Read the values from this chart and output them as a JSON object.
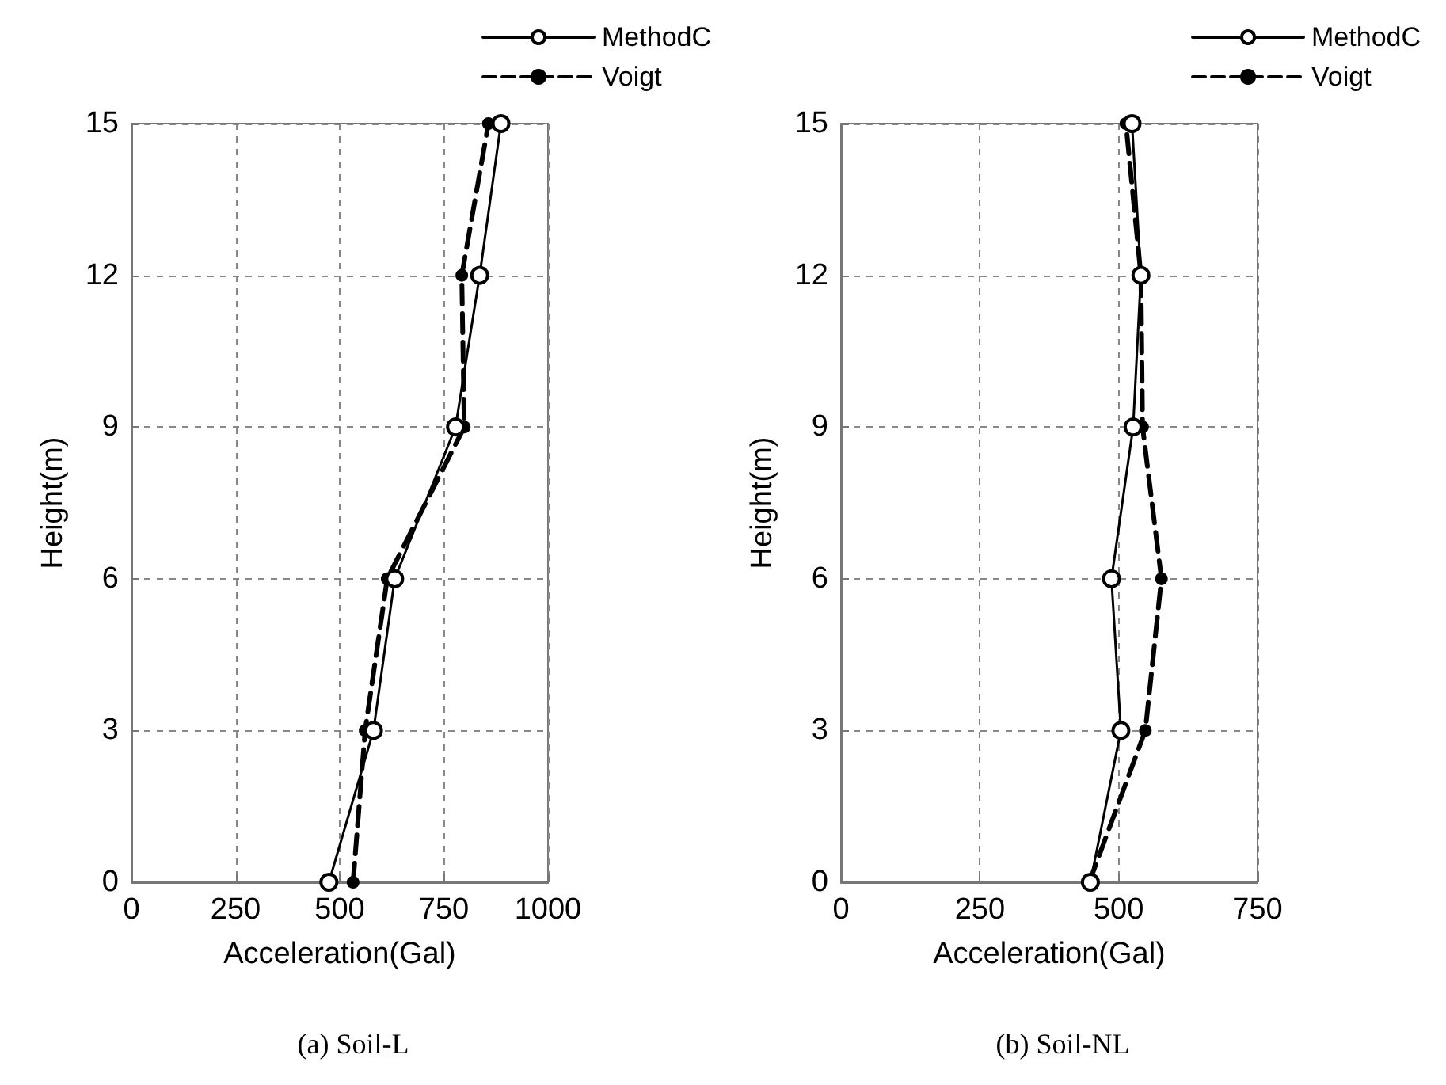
{
  "chart_data": [
    {
      "type": "line",
      "title": "(a) Soil-L",
      "xlabel": "Acceleration(Gal)",
      "ylabel": "Height(m)",
      "xlim": [
        0,
        1000
      ],
      "xticks": [
        0,
        250,
        500,
        750,
        1000
      ],
      "ylim": [
        0,
        15
      ],
      "yticks": [
        0,
        3,
        6,
        9,
        12,
        15
      ],
      "grid": true,
      "legend": "top right",
      "marker": "circle",
      "series": [
        {
          "name": "MethodC",
          "color": "#000000",
          "line_style": "solid",
          "x": [
            474,
            581,
            632,
            778,
            836,
            887
          ],
          "values": [
            0,
            3,
            6,
            9,
            12,
            15
          ]
        },
        {
          "name": "Voigt",
          "color": "#000000",
          "line_style": "dashed",
          "x": [
            532,
            561,
            614,
            799,
            793,
            857
          ],
          "values": [
            0,
            3,
            6,
            9,
            12,
            15
          ]
        }
      ]
    },
    {
      "type": "line",
      "title": "(b) Soil-NL",
      "xlabel": "Acceleration(Gal)",
      "ylabel": "Height(m)",
      "xlim": [
        0,
        750
      ],
      "xticks": [
        0,
        250,
        500,
        750
      ],
      "ylim": [
        0,
        15
      ],
      "yticks": [
        0,
        3,
        6,
        9,
        12,
        15
      ],
      "grid": true,
      "legend": "top right",
      "marker": "circle",
      "series": [
        {
          "name": "MethodC",
          "color": "#000000",
          "line_style": "solid",
          "x": [
            449,
            504,
            487,
            526,
            540,
            524
          ],
          "values": [
            0,
            3,
            6,
            9,
            12,
            15
          ]
        },
        {
          "name": "Voigt",
          "color": "#000000",
          "line_style": "dashed",
          "x": [
            447,
            548,
            577,
            543,
            540,
            513
          ],
          "values": [
            0,
            3,
            6,
            9,
            12,
            15
          ]
        }
      ]
    }
  ]
}
